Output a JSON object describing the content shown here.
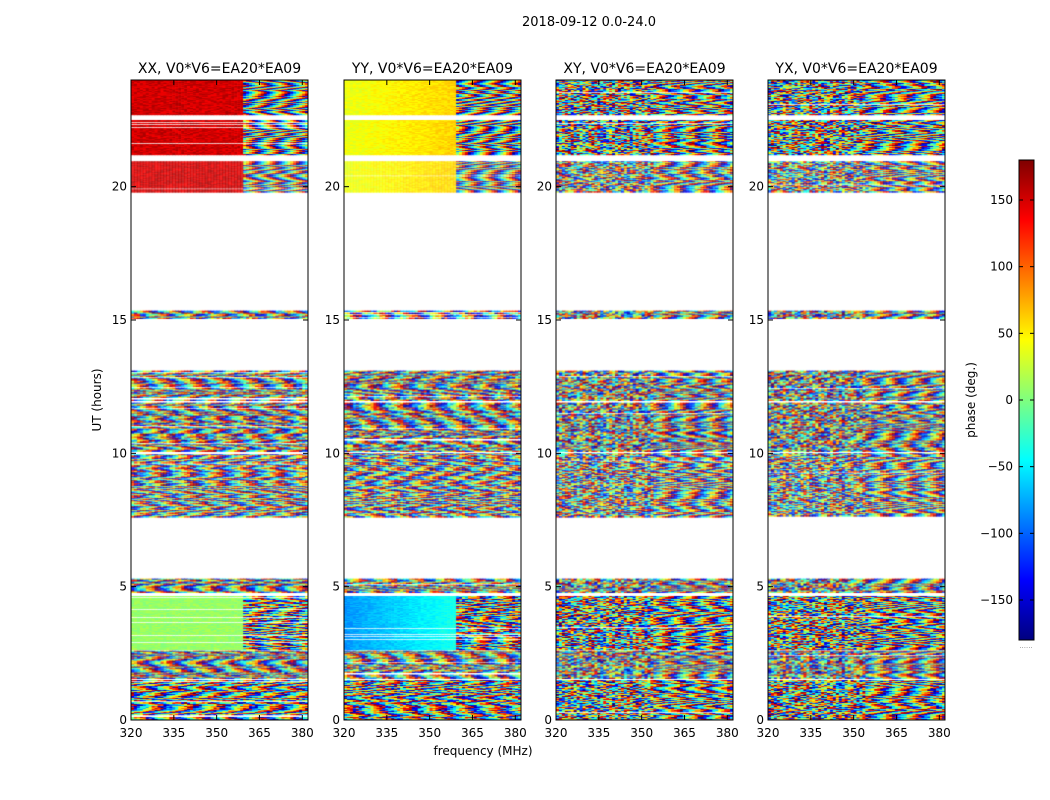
{
  "figure": {
    "title": "2018-09-12 0.0-24.0",
    "ylabel": "UT (hours)",
    "xlabel": "frequency (MHz)",
    "colorbar": {
      "label": "phase (deg.)",
      "range": [
        -180,
        180
      ],
      "ticks": [
        150,
        100,
        50,
        0,
        -50,
        -100,
        -150
      ],
      "tick_labels": [
        "150",
        "100",
        "50",
        "0",
        "−50",
        "−100",
        "−150"
      ],
      "colormap": "jet",
      "footnote": "......"
    }
  },
  "chart_data": [
    {
      "type": "heatmap",
      "title": "XX, V0*V6=EA20*EA09",
      "x_ticks": [
        "320",
        "335",
        "350",
        "365",
        "380"
      ],
      "y_ticks": [
        "0",
        "5",
        "10",
        "15",
        "20"
      ],
      "x_tick_values": [
        320,
        335,
        350,
        365,
        380
      ],
      "y_tick_values": [
        0,
        5,
        10,
        15,
        20
      ],
      "xlim": [
        320,
        382
      ],
      "ylim": [
        0,
        24
      ],
      "pattern": "xx"
    },
    {
      "type": "heatmap",
      "title": "YY, V0*V6=EA20*EA09",
      "x_ticks": [
        "320",
        "335",
        "350",
        "365",
        "380"
      ],
      "y_ticks": [
        "0",
        "5",
        "10",
        "15",
        "20"
      ],
      "x_tick_values": [
        320,
        335,
        350,
        365,
        380
      ],
      "y_tick_values": [
        0,
        5,
        10,
        15,
        20
      ],
      "xlim": [
        320,
        382
      ],
      "ylim": [
        0,
        24
      ],
      "pattern": "yy"
    },
    {
      "type": "heatmap",
      "title": "XY, V0*V6=EA20*EA09",
      "x_ticks": [
        "320",
        "335",
        "350",
        "365",
        "380"
      ],
      "y_ticks": [
        "0",
        "5",
        "10",
        "15",
        "20"
      ],
      "x_tick_values": [
        320,
        335,
        350,
        365,
        380
      ],
      "y_tick_values": [
        0,
        5,
        10,
        15,
        20
      ],
      "xlim": [
        320,
        382
      ],
      "ylim": [
        0,
        24
      ],
      "pattern": "cross"
    },
    {
      "type": "heatmap",
      "title": "YX, V0*V6=EA20*EA09",
      "x_ticks": [
        "320",
        "335",
        "350",
        "365",
        "380"
      ],
      "y_ticks": [
        "0",
        "5",
        "10",
        "15",
        "20"
      ],
      "x_tick_values": [
        320,
        335,
        350,
        365,
        380
      ],
      "y_tick_values": [
        0,
        5,
        10,
        15,
        20
      ],
      "xlim": [
        320,
        382
      ],
      "ylim": [
        0,
        24
      ],
      "pattern": "cross"
    }
  ],
  "observation_blocks_hours": [
    [
      0.0,
      1.5
    ],
    [
      1.55,
      2.6
    ],
    [
      2.65,
      4.65
    ],
    [
      4.8,
      5.3
    ],
    [
      7.6,
      10.0
    ],
    [
      10.1,
      11.9
    ],
    [
      12.0,
      13.1
    ],
    [
      15.05,
      15.35
    ],
    [
      19.8,
      20.95
    ],
    [
      21.2,
      22.5
    ],
    [
      22.7,
      24.0
    ]
  ]
}
